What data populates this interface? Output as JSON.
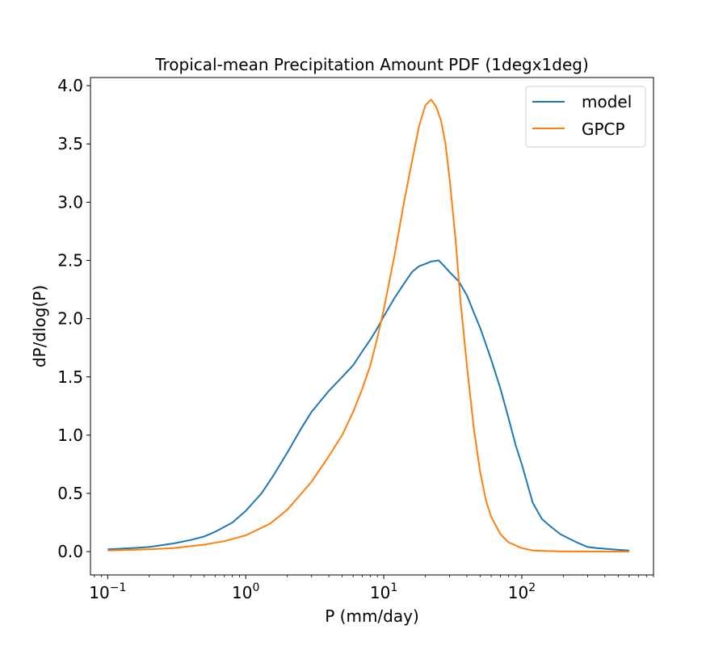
{
  "chart_data": {
    "type": "line",
    "title": "Tropical-mean Precipitation Amount PDF (1degx1deg)",
    "xlabel": "P (mm/day)",
    "ylabel": "dP/dlog(P)",
    "xscale": "log",
    "xlim": [
      0.075,
      900
    ],
    "ylim": [
      -0.2,
      4.07
    ],
    "grid": false,
    "legend_position": "top-right",
    "y_ticks": [
      0.0,
      0.5,
      1.0,
      1.5,
      2.0,
      2.5,
      3.0,
      3.5,
      4.0
    ],
    "y_tick_labels": [
      "0.0",
      "0.5",
      "1.0",
      "1.5",
      "2.0",
      "2.5",
      "3.0",
      "3.5",
      "4.0"
    ],
    "x_ticks": [
      {
        "value": 0.1,
        "base": "10",
        "exp": "−1"
      },
      {
        "value": 1,
        "base": "10",
        "exp": "0"
      },
      {
        "value": 10,
        "base": "10",
        "exp": "1"
      },
      {
        "value": 100,
        "base": "10",
        "exp": "2"
      }
    ],
    "series": [
      {
        "name": "model",
        "color": "#1f77b4",
        "x": [
          0.1,
          0.15,
          0.2,
          0.3,
          0.4,
          0.5,
          0.6,
          0.8,
          1.0,
          1.3,
          1.6,
          2.0,
          2.5,
          3.0,
          4.0,
          5.0,
          6.0,
          7.0,
          8.0,
          9.0,
          10.0,
          12.0,
          14.0,
          16.0,
          18.0,
          20.0,
          22.0,
          25.0,
          27.0,
          30.0,
          35.0,
          40.0,
          45.0,
          50.0,
          55.0,
          60.0,
          70.0,
          80.0,
          90.0,
          100.0,
          120.0,
          140.0,
          160.0,
          190.0,
          250.0,
          300.0,
          350.0,
          450.0,
          600.0
        ],
        "y": [
          0.02,
          0.03,
          0.04,
          0.07,
          0.1,
          0.13,
          0.17,
          0.25,
          0.35,
          0.5,
          0.66,
          0.85,
          1.05,
          1.2,
          1.38,
          1.5,
          1.6,
          1.72,
          1.82,
          1.92,
          2.02,
          2.18,
          2.3,
          2.4,
          2.45,
          2.47,
          2.49,
          2.5,
          2.46,
          2.4,
          2.32,
          2.2,
          2.05,
          1.92,
          1.78,
          1.65,
          1.4,
          1.15,
          0.92,
          0.75,
          0.42,
          0.28,
          0.22,
          0.15,
          0.08,
          0.04,
          0.03,
          0.02,
          0.01
        ]
      },
      {
        "name": "GPCP",
        "color": "#ff7f0e",
        "x": [
          0.1,
          0.2,
          0.3,
          0.5,
          0.7,
          1.0,
          1.5,
          2.0,
          3.0,
          4.0,
          5.0,
          6.0,
          7.0,
          8.0,
          9.0,
          10.0,
          12.0,
          14.0,
          16.0,
          18.0,
          20.0,
          22.0,
          24.0,
          26.0,
          28.0,
          30.0,
          33.0,
          36.0,
          40.0,
          45.0,
          50.0,
          55.0,
          60.0,
          70.0,
          80.0,
          100.0,
          120.0,
          150.0,
          200.0,
          300.0,
          600.0
        ],
        "y": [
          0.01,
          0.02,
          0.03,
          0.06,
          0.09,
          0.14,
          0.24,
          0.36,
          0.6,
          0.82,
          1.0,
          1.2,
          1.4,
          1.6,
          1.84,
          2.08,
          2.55,
          3.0,
          3.35,
          3.65,
          3.83,
          3.88,
          3.82,
          3.7,
          3.5,
          3.2,
          2.7,
          2.15,
          1.6,
          1.05,
          0.68,
          0.44,
          0.3,
          0.15,
          0.08,
          0.03,
          0.01,
          0.005,
          0.002,
          0.001,
          0.001
        ]
      }
    ]
  }
}
